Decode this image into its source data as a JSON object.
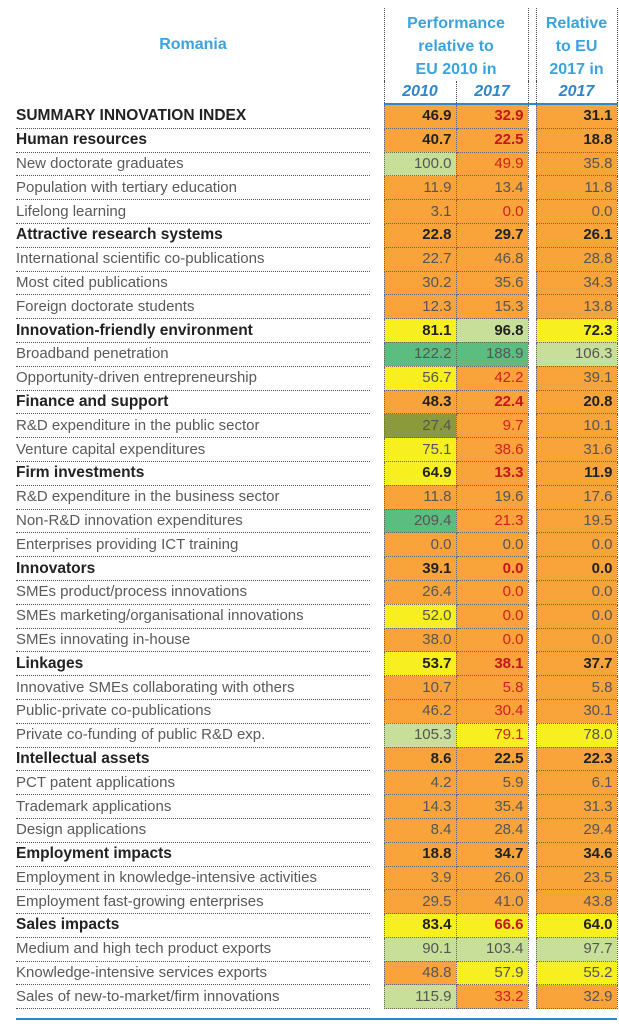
{
  "header": {
    "country": "Romania",
    "group1_label": [
      "Performance",
      "relative to",
      "EU 2010 in"
    ],
    "group2_label": [
      "Relative",
      "to EU",
      "2017 in"
    ],
    "year_a": "2010",
    "year_b": "2017",
    "year_c": "2017"
  },
  "colors": {
    "orange": "#f9a43a",
    "yellow": "#f7ef1f",
    "lightgreen": "#c7df98",
    "green": "#5bbd7f",
    "olive": "#8b9a3a",
    "header_blue": "#3aa3de",
    "rule_blue": "#2f86c8",
    "red_text": "#d31f1f"
  },
  "rows": [
    {
      "label": "SUMMARY INNOVATION INDEX",
      "main": true,
      "values": [
        "46.9",
        "32.9",
        "31.1"
      ],
      "colors": [
        "orange",
        "orange",
        "orange"
      ],
      "red": [
        false,
        true,
        false
      ]
    },
    {
      "label": "Human resources",
      "main": true,
      "values": [
        "40.7",
        "22.5",
        "18.8"
      ],
      "colors": [
        "orange",
        "orange",
        "orange"
      ],
      "red": [
        false,
        true,
        false
      ]
    },
    {
      "label": "New doctorate graduates",
      "main": false,
      "values": [
        "100.0",
        "49.9",
        "35.8"
      ],
      "colors": [
        "lightgreen",
        "orange",
        "orange"
      ],
      "red": [
        false,
        true,
        false
      ]
    },
    {
      "label": "Population with tertiary education",
      "main": false,
      "values": [
        "11.9",
        "13.4",
        "11.8"
      ],
      "colors": [
        "orange",
        "orange",
        "orange"
      ],
      "red": [
        false,
        false,
        false
      ]
    },
    {
      "label": "Lifelong learning",
      "main": false,
      "values": [
        "3.1",
        "0.0",
        "0.0"
      ],
      "colors": [
        "orange",
        "orange",
        "orange"
      ],
      "red": [
        false,
        true,
        false
      ]
    },
    {
      "label": "Attractive research systems",
      "main": true,
      "values": [
        "22.8",
        "29.7",
        "26.1"
      ],
      "colors": [
        "orange",
        "orange",
        "orange"
      ],
      "red": [
        false,
        false,
        false
      ]
    },
    {
      "label": "International scientific co-publications",
      "main": false,
      "values": [
        "22.7",
        "46.8",
        "28.8"
      ],
      "colors": [
        "orange",
        "orange",
        "orange"
      ],
      "red": [
        false,
        false,
        false
      ]
    },
    {
      "label": "Most cited publications",
      "main": false,
      "values": [
        "30.2",
        "35.6",
        "34.3"
      ],
      "colors": [
        "orange",
        "orange",
        "orange"
      ],
      "red": [
        false,
        false,
        false
      ]
    },
    {
      "label": "Foreign doctorate students",
      "main": false,
      "values": [
        "12.3",
        "15.3",
        "13.8"
      ],
      "colors": [
        "orange",
        "orange",
        "orange"
      ],
      "red": [
        false,
        false,
        false
      ]
    },
    {
      "label": "Innovation-friendly environment",
      "main": true,
      "values": [
        "81.1",
        "96.8",
        "72.3"
      ],
      "colors": [
        "yellow",
        "lightgreen",
        "yellow"
      ],
      "red": [
        false,
        false,
        false
      ]
    },
    {
      "label": "Broadband penetration",
      "main": false,
      "values": [
        "122.2",
        "188.9",
        "106.3"
      ],
      "colors": [
        "green",
        "green",
        "lightgreen"
      ],
      "red": [
        false,
        false,
        false
      ]
    },
    {
      "label": "Opportunity-driven entrepreneurship",
      "main": false,
      "values": [
        "56.7",
        "42.2",
        "39.1"
      ],
      "colors": [
        "yellow",
        "orange",
        "orange"
      ],
      "red": [
        false,
        true,
        false
      ]
    },
    {
      "label": "Finance and support",
      "main": true,
      "values": [
        "48.3",
        "22.4",
        "20.8"
      ],
      "colors": [
        "orange",
        "orange",
        "orange"
      ],
      "red": [
        false,
        true,
        false
      ]
    },
    {
      "label": "R&D expenditure in the public sector",
      "main": false,
      "values": [
        "27.4",
        "9.7",
        "10.1"
      ],
      "colors": [
        "olive",
        "orange",
        "orange"
      ],
      "red": [
        false,
        true,
        false
      ]
    },
    {
      "label": "Venture capital expenditures",
      "main": false,
      "values": [
        "75.1",
        "38.6",
        "31.6"
      ],
      "colors": [
        "yellow",
        "orange",
        "orange"
      ],
      "red": [
        false,
        true,
        false
      ]
    },
    {
      "label": "Firm investments",
      "main": true,
      "values": [
        "64.9",
        "13.3",
        "11.9"
      ],
      "colors": [
        "yellow",
        "orange",
        "orange"
      ],
      "red": [
        false,
        true,
        false
      ]
    },
    {
      "label": "R&D expenditure in the business sector",
      "main": false,
      "values": [
        "11.8",
        "19.6",
        "17.6"
      ],
      "colors": [
        "orange",
        "orange",
        "orange"
      ],
      "red": [
        false,
        false,
        false
      ]
    },
    {
      "label": "Non-R&D innovation expenditures",
      "main": false,
      "values": [
        "209.4",
        "21.3",
        "19.5"
      ],
      "colors": [
        "green",
        "orange",
        "orange"
      ],
      "red": [
        false,
        true,
        false
      ]
    },
    {
      "label": "Enterprises providing ICT training",
      "main": false,
      "values": [
        "0.0",
        "0.0",
        "0.0"
      ],
      "colors": [
        "orange",
        "orange",
        "orange"
      ],
      "red": [
        false,
        false,
        false
      ]
    },
    {
      "label": "Innovators",
      "main": true,
      "values": [
        "39.1",
        "0.0",
        "0.0"
      ],
      "colors": [
        "orange",
        "orange",
        "orange"
      ],
      "red": [
        false,
        true,
        false
      ]
    },
    {
      "label": "SMEs product/process innovations",
      "main": false,
      "values": [
        "26.4",
        "0.0",
        "0.0"
      ],
      "colors": [
        "orange",
        "orange",
        "orange"
      ],
      "red": [
        false,
        true,
        false
      ]
    },
    {
      "label": "SMEs marketing/organisational innovations",
      "main": false,
      "values": [
        "52.0",
        "0.0",
        "0.0"
      ],
      "colors": [
        "yellow",
        "orange",
        "orange"
      ],
      "red": [
        false,
        true,
        false
      ]
    },
    {
      "label": "SMEs innovating in-house",
      "main": false,
      "values": [
        "38.0",
        "0.0",
        "0.0"
      ],
      "colors": [
        "orange",
        "orange",
        "orange"
      ],
      "red": [
        false,
        true,
        false
      ]
    },
    {
      "label": "Linkages",
      "main": true,
      "values": [
        "53.7",
        "38.1",
        "37.7"
      ],
      "colors": [
        "yellow",
        "orange",
        "orange"
      ],
      "red": [
        false,
        true,
        false
      ]
    },
    {
      "label": "Innovative SMEs collaborating with others",
      "main": false,
      "values": [
        "10.7",
        "5.8",
        "5.8"
      ],
      "colors": [
        "orange",
        "orange",
        "orange"
      ],
      "red": [
        false,
        true,
        false
      ]
    },
    {
      "label": "Public-private co-publications",
      "main": false,
      "values": [
        "46.2",
        "30.4",
        "30.1"
      ],
      "colors": [
        "orange",
        "orange",
        "orange"
      ],
      "red": [
        false,
        true,
        false
      ]
    },
    {
      "label": "Private co-funding of public R&D exp.",
      "main": false,
      "values": [
        "105.3",
        "79.1",
        "78.0"
      ],
      "colors": [
        "lightgreen",
        "yellow",
        "yellow"
      ],
      "red": [
        false,
        true,
        false
      ]
    },
    {
      "label": "Intellectual assets",
      "main": true,
      "values": [
        "8.6",
        "22.5",
        "22.3"
      ],
      "colors": [
        "orange",
        "orange",
        "orange"
      ],
      "red": [
        false,
        false,
        false
      ]
    },
    {
      "label": "PCT patent applications",
      "main": false,
      "values": [
        "4.2",
        "5.9",
        "6.1"
      ],
      "colors": [
        "orange",
        "orange",
        "orange"
      ],
      "red": [
        false,
        false,
        false
      ]
    },
    {
      "label": "Trademark applications",
      "main": false,
      "values": [
        "14.3",
        "35.4",
        "31.3"
      ],
      "colors": [
        "orange",
        "orange",
        "orange"
      ],
      "red": [
        false,
        false,
        false
      ]
    },
    {
      "label": "Design applications",
      "main": false,
      "values": [
        "8.4",
        "28.4",
        "29.4"
      ],
      "colors": [
        "orange",
        "orange",
        "orange"
      ],
      "red": [
        false,
        false,
        false
      ]
    },
    {
      "label": "Employment impacts",
      "main": true,
      "values": [
        "18.8",
        "34.7",
        "34.6"
      ],
      "colors": [
        "orange",
        "orange",
        "orange"
      ],
      "red": [
        false,
        false,
        false
      ]
    },
    {
      "label": "Employment in knowledge-intensive activities",
      "main": false,
      "values": [
        "3.9",
        "26.0",
        "23.5"
      ],
      "colors": [
        "orange",
        "orange",
        "orange"
      ],
      "red": [
        false,
        false,
        false
      ]
    },
    {
      "label": "Employment fast-growing enterprises",
      "main": false,
      "values": [
        "29.5",
        "41.0",
        "43.8"
      ],
      "colors": [
        "orange",
        "orange",
        "orange"
      ],
      "red": [
        false,
        false,
        false
      ]
    },
    {
      "label": "Sales impacts",
      "main": true,
      "values": [
        "83.4",
        "66.6",
        "64.0"
      ],
      "colors": [
        "yellow",
        "yellow",
        "yellow"
      ],
      "red": [
        false,
        true,
        false
      ]
    },
    {
      "label": "Medium and high tech product exports",
      "main": false,
      "values": [
        "90.1",
        "103.4",
        "97.7"
      ],
      "colors": [
        "lightgreen",
        "lightgreen",
        "lightgreen"
      ],
      "red": [
        false,
        false,
        false
      ]
    },
    {
      "label": "Knowledge-intensive services exports",
      "main": false,
      "values": [
        "48.8",
        "57.9",
        "55.2"
      ],
      "colors": [
        "orange",
        "yellow",
        "yellow"
      ],
      "red": [
        false,
        false,
        false
      ]
    },
    {
      "label": "Sales of new-to-market/firm innovations",
      "main": false,
      "values": [
        "115.9",
        "33.2",
        "32.9"
      ],
      "colors": [
        "lightgreen",
        "orange",
        "orange"
      ],
      "red": [
        false,
        true,
        false
      ]
    }
  ]
}
